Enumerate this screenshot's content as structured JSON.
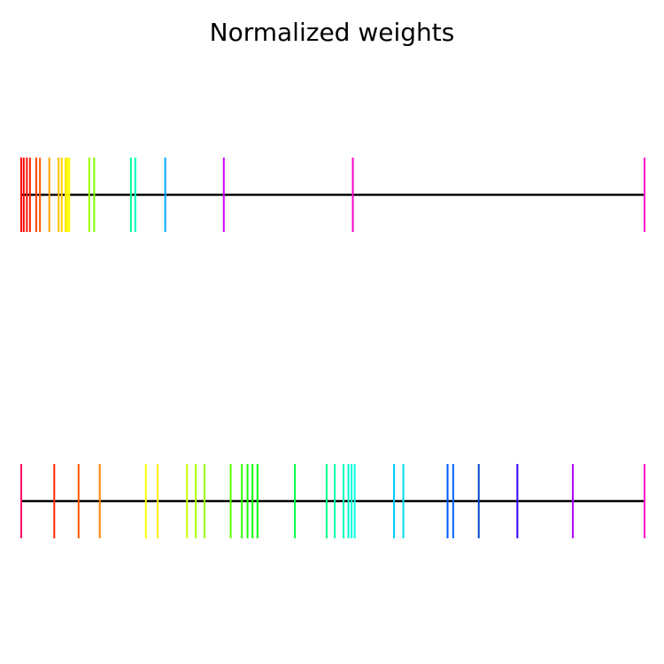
{
  "chart_data": {
    "type": "eventplot",
    "title": "Normalized weights",
    "axes_visible": false,
    "grid": false,
    "rows": [
      {
        "values": [
          0.0,
          0.004,
          0.009,
          0.014,
          0.024,
          0.03,
          0.045,
          0.06,
          0.065,
          0.071,
          0.074,
          0.077,
          0.109,
          0.117,
          0.176,
          0.183,
          0.231,
          0.325,
          0.532,
          1.0
        ],
        "colors": [
          "#ff0000",
          "#ff0500",
          "#ff1400",
          "#ff2200",
          "#ff4000",
          "#ff5a00",
          "#ffa000",
          "#ffc000",
          "#ffd000",
          "#ffe600",
          "#ffff00",
          "#ffff00",
          "#a0ff00",
          "#80ff00",
          "#00ff99",
          "#00ffbb",
          "#00aaff",
          "#cc00ff",
          "#ff00cc",
          "#ff00cc"
        ]
      },
      {
        "values": [
          0.0,
          0.053,
          0.092,
          0.126,
          0.2,
          0.219,
          0.266,
          0.28,
          0.294,
          0.336,
          0.354,
          0.363,
          0.371,
          0.379,
          0.439,
          0.49,
          0.503,
          0.517,
          0.525,
          0.53,
          0.535,
          0.598,
          0.613,
          0.684,
          0.693,
          0.734,
          0.796,
          0.885,
          1.0
        ],
        "colors": [
          "#ff0066",
          "#ff2a00",
          "#ff5500",
          "#ff8000",
          "#ffff00",
          "#ffee00",
          "#ccff00",
          "#aaff00",
          "#99ff00",
          "#55ff00",
          "#33ff00",
          "#22ff00",
          "#11ff00",
          "#00ff11",
          "#00ff44",
          "#00ff88",
          "#00ffaa",
          "#00ffbb",
          "#00ffcc",
          "#00ffdd",
          "#00ffee",
          "#00ccff",
          "#00ddee",
          "#0055ff",
          "#0066ff",
          "#0044cc",
          "#3300ff",
          "#aa00ff",
          "#ff00cc"
        ]
      }
    ]
  }
}
